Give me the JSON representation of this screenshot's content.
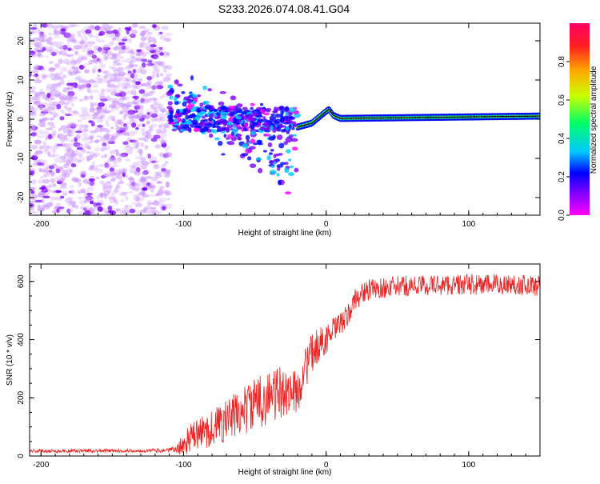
{
  "figure_title": "S233.2026.074.08.41.G04",
  "chart_data": [
    {
      "type": "heatmap",
      "title": "S233.2026.074.08.41.G04",
      "xlabel": "Height of straight line (km)",
      "ylabel": "Frequency (Hz)",
      "xlim": [
        -208,
        150
      ],
      "ylim": [
        -24.5,
        24.5
      ],
      "xticks": [
        -200,
        -100,
        0,
        100
      ],
      "yticks": [
        -20,
        -10,
        0,
        10,
        20
      ],
      "colorbar": {
        "label": "Normalized spectral amplitude",
        "range": [
          0.0,
          1.0
        ],
        "ticks": [
          0.0,
          0.2,
          0.4,
          0.6,
          0.8
        ],
        "colormap": [
          "#ff00ff",
          "#7a00ff",
          "#0000ff",
          "#00c8ff",
          "#00ff66",
          "#c8ff00",
          "#ffaa00",
          "#ff2020",
          "#ff0066"
        ]
      },
      "regions": [
        {
          "name": "noise",
          "x_range": [
            -208,
            -110
          ],
          "freq_range": [
            -24,
            24
          ],
          "amplitude": [
            0.02,
            0.25
          ]
        },
        {
          "name": "transition",
          "x_range": [
            -110,
            -20
          ],
          "freq_range": [
            -22,
            12
          ],
          "amplitude": [
            0.1,
            0.45
          ]
        },
        {
          "name": "carrier",
          "x_range": [
            -20,
            150
          ],
          "frequency_hz": [
            -2,
            0,
            2.5,
            0,
            0,
            0,
            1
          ],
          "amplitude": [
            0.6,
            0.95
          ]
        }
      ],
      "peak_line": {
        "x": [
          -20,
          -10,
          0,
          2,
          5,
          10,
          150
        ],
        "y": [
          -2,
          -1,
          2.0,
          2.5,
          1.0,
          0.2,
          0.8
        ]
      }
    },
    {
      "type": "line",
      "title": "",
      "xlabel": "Height of straight line (km)",
      "ylabel": "SNR (10 * v/v)",
      "xlim": [
        -208,
        150
      ],
      "ylim": [
        0,
        660
      ],
      "xticks": [
        -200,
        -100,
        0,
        100
      ],
      "yticks": [
        0,
        200,
        400,
        600
      ],
      "series": [
        {
          "name": "SNR",
          "color": "#ee2222",
          "x": [
            -208,
            -190,
            -170,
            -150,
            -130,
            -110,
            -105,
            -100,
            -95,
            -90,
            -85,
            -80,
            -75,
            -70,
            -65,
            -60,
            -55,
            -50,
            -45,
            -40,
            -35,
            -30,
            -25,
            -20,
            -15,
            -10,
            -5,
            0,
            5,
            10,
            15,
            20,
            25,
            30,
            40,
            50,
            60,
            70,
            80,
            90,
            100,
            110,
            120,
            130,
            140,
            150
          ],
          "values": [
            18,
            17,
            18,
            18,
            18,
            20,
            22,
            40,
            62,
            75,
            85,
            95,
            110,
            122,
            135,
            150,
            165,
            178,
            192,
            205,
            212,
            220,
            225,
            215,
            300,
            350,
            385,
            400,
            430,
            455,
            480,
            535,
            560,
            570,
            578,
            583,
            585,
            587,
            588,
            588,
            590,
            588,
            590,
            590,
            588,
            585
          ],
          "noise_amplitude": [
            6,
            6,
            6,
            6,
            6,
            8,
            14,
            40,
            50,
            55,
            60,
            65,
            70,
            75,
            80,
            85,
            88,
            90,
            92,
            95,
            95,
            90,
            80,
            70,
            75,
            70,
            60,
            50,
            45,
            40,
            40,
            40,
            38,
            38,
            36,
            36,
            36,
            36,
            36,
            36,
            36,
            36,
            36,
            36,
            36,
            36
          ]
        }
      ]
    }
  ]
}
